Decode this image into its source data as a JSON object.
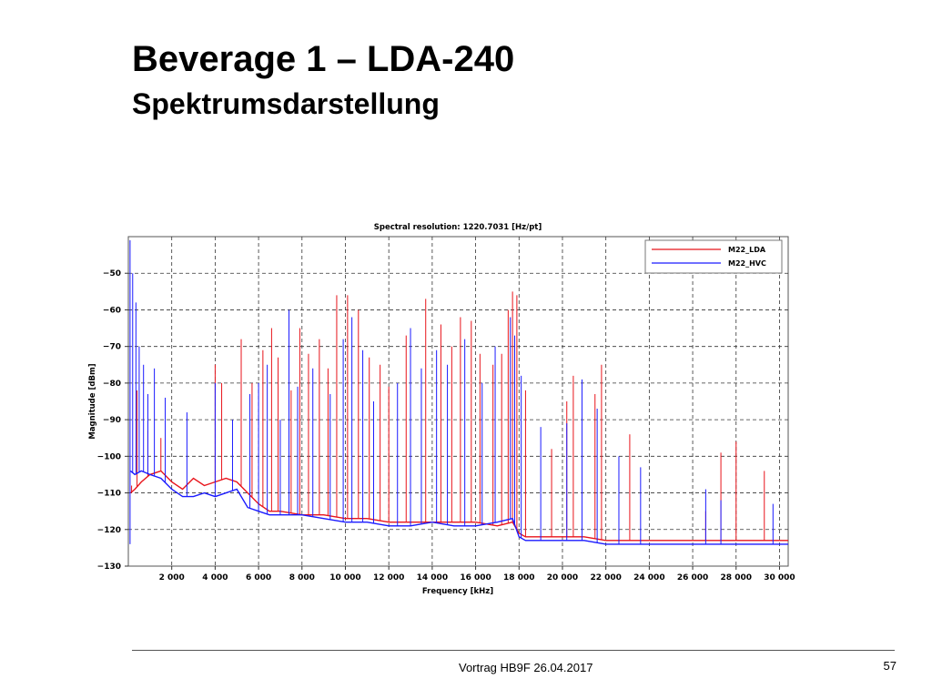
{
  "slide": {
    "title": "Beverage 1 – LDA-240",
    "subtitle": "Spektrumsdarstellung",
    "footer": "Vortrag HB9F 26.04.2017",
    "page_number": "57"
  },
  "chart_data": {
    "type": "line",
    "title": "Spectral resolution:  1220.7031   [Hz/pt]",
    "xlabel": "Frequency [kHz]",
    "ylabel": "Magnitude [dBm]",
    "xlim": [
      0,
      30400
    ],
    "ylim": [
      -130,
      -40
    ],
    "x_ticks": [
      2000,
      4000,
      6000,
      8000,
      10000,
      12000,
      14000,
      16000,
      18000,
      20000,
      22000,
      24000,
      26000,
      28000,
      30000
    ],
    "x_tick_labels": [
      "2 000",
      "4 000",
      "6 000",
      "8 000",
      "10 000",
      "12 000",
      "14 000",
      "16 000",
      "18 000",
      "20 000",
      "22 000",
      "24 000",
      "26 000",
      "28 000",
      "30 000"
    ],
    "y_ticks": [
      -130,
      -120,
      -110,
      -100,
      -90,
      -80,
      -70,
      -60,
      -50
    ],
    "y_tick_labels": [
      "−130",
      "−120",
      "−110",
      "−100",
      "−90",
      "−80",
      "−70",
      "−60",
      "−50"
    ],
    "grid": true,
    "legend_position": "top-right",
    "series": [
      {
        "name": "M22_LDA",
        "color": "#e8141b",
        "x": [
          100,
          300,
          600,
          1000,
          1500,
          2000,
          2500,
          3000,
          3500,
          4000,
          4500,
          5000,
          5500,
          6000,
          6500,
          7000,
          8000,
          9000,
          10000,
          11000,
          12000,
          13000,
          14000,
          15000,
          16000,
          17000,
          17700,
          18000,
          18300,
          19000,
          20000,
          21000,
          22000,
          23000,
          24000,
          25000,
          26000,
          27000,
          28000,
          29000,
          30000,
          30400
        ],
        "y": [
          -110,
          -109,
          -107,
          -105,
          -104,
          -107,
          -109,
          -106,
          -108,
          -107,
          -106,
          -107,
          -110,
          -113,
          -115,
          -115,
          -116,
          -116,
          -117,
          -117,
          -118,
          -118,
          -118,
          -118,
          -118,
          -119,
          -118,
          -121,
          -122,
          -122,
          -122,
          -122,
          -123,
          -123,
          -123,
          -123,
          -123,
          -123,
          -123,
          -123,
          -123,
          -123
        ],
        "peaks": [
          {
            "x": 150,
            "y": -108
          },
          {
            "x": 400,
            "y": -82
          },
          {
            "x": 900,
            "y": -93
          },
          {
            "x": 1500,
            "y": -95
          },
          {
            "x": 4000,
            "y": -75
          },
          {
            "x": 4300,
            "y": -80
          },
          {
            "x": 5200,
            "y": -68
          },
          {
            "x": 5700,
            "y": -80
          },
          {
            "x": 6200,
            "y": -71
          },
          {
            "x": 6600,
            "y": -65
          },
          {
            "x": 6900,
            "y": -73
          },
          {
            "x": 7500,
            "y": -82
          },
          {
            "x": 7900,
            "y": -65
          },
          {
            "x": 8300,
            "y": -72
          },
          {
            "x": 8800,
            "y": -68
          },
          {
            "x": 9200,
            "y": -76
          },
          {
            "x": 9600,
            "y": -56
          },
          {
            "x": 10100,
            "y": -56
          },
          {
            "x": 10600,
            "y": -60
          },
          {
            "x": 11100,
            "y": -73
          },
          {
            "x": 11600,
            "y": -75
          },
          {
            "x": 12000,
            "y": -81
          },
          {
            "x": 12800,
            "y": -67
          },
          {
            "x": 13700,
            "y": -57
          },
          {
            "x": 14400,
            "y": -64
          },
          {
            "x": 14900,
            "y": -70
          },
          {
            "x": 15300,
            "y": -62
          },
          {
            "x": 15800,
            "y": -63
          },
          {
            "x": 16200,
            "y": -72
          },
          {
            "x": 16800,
            "y": -75
          },
          {
            "x": 17200,
            "y": -72
          },
          {
            "x": 17500,
            "y": -60
          },
          {
            "x": 17700,
            "y": -55
          },
          {
            "x": 17900,
            "y": -56
          },
          {
            "x": 18300,
            "y": -82
          },
          {
            "x": 19500,
            "y": -98
          },
          {
            "x": 20200,
            "y": -85
          },
          {
            "x": 20500,
            "y": -78
          },
          {
            "x": 21500,
            "y": -83
          },
          {
            "x": 21800,
            "y": -75
          },
          {
            "x": 23100,
            "y": -94
          },
          {
            "x": 26600,
            "y": -115
          },
          {
            "x": 27300,
            "y": -99
          },
          {
            "x": 28000,
            "y": -96
          },
          {
            "x": 29300,
            "y": -104
          }
        ]
      },
      {
        "name": "M22_HVC",
        "color": "#1a1aff",
        "x": [
          100,
          300,
          600,
          1000,
          1500,
          2000,
          2500,
          3000,
          3500,
          4000,
          4500,
          5000,
          5500,
          6000,
          6500,
          7000,
          8000,
          9000,
          10000,
          11000,
          12000,
          13000,
          14000,
          15000,
          16000,
          17000,
          17700,
          18000,
          18300,
          19000,
          20000,
          21000,
          22000,
          23000,
          24000,
          25000,
          26000,
          27000,
          28000,
          29000,
          30000,
          30400
        ],
        "y": [
          -104,
          -105,
          -104,
          -105,
          -106,
          -109,
          -111,
          -111,
          -110,
          -111,
          -110,
          -109,
          -114,
          -115,
          -116,
          -116,
          -116,
          -117,
          -118,
          -118,
          -119,
          -119,
          -118,
          -119,
          -119,
          -118,
          -117,
          -122,
          -123,
          -123,
          -123,
          -123,
          -124,
          -124,
          -124,
          -124,
          -124,
          -124,
          -124,
          -124,
          -124,
          -124
        ],
        "peaks": [
          {
            "x": 80,
            "y": -41
          },
          {
            "x": 200,
            "y": -50
          },
          {
            "x": 350,
            "y": -58
          },
          {
            "x": 500,
            "y": -70
          },
          {
            "x": 700,
            "y": -75
          },
          {
            "x": 900,
            "y": -83
          },
          {
            "x": 1200,
            "y": -76
          },
          {
            "x": 1700,
            "y": -84
          },
          {
            "x": 2700,
            "y": -88
          },
          {
            "x": 4000,
            "y": -80
          },
          {
            "x": 4800,
            "y": -90
          },
          {
            "x": 5600,
            "y": -83
          },
          {
            "x": 6000,
            "y": -80
          },
          {
            "x": 6400,
            "y": -75
          },
          {
            "x": 7000,
            "y": -90
          },
          {
            "x": 7400,
            "y": -60
          },
          {
            "x": 7800,
            "y": -81
          },
          {
            "x": 8500,
            "y": -76
          },
          {
            "x": 9300,
            "y": -83
          },
          {
            "x": 9900,
            "y": -68
          },
          {
            "x": 10300,
            "y": -62
          },
          {
            "x": 10800,
            "y": -71
          },
          {
            "x": 11300,
            "y": -85
          },
          {
            "x": 12400,
            "y": -80
          },
          {
            "x": 13000,
            "y": -65
          },
          {
            "x": 13500,
            "y": -76
          },
          {
            "x": 14200,
            "y": -71
          },
          {
            "x": 14700,
            "y": -75
          },
          {
            "x": 15500,
            "y": -68
          },
          {
            "x": 16300,
            "y": -80
          },
          {
            "x": 16900,
            "y": -70
          },
          {
            "x": 17600,
            "y": -62
          },
          {
            "x": 17800,
            "y": -67
          },
          {
            "x": 18100,
            "y": -78
          },
          {
            "x": 19000,
            "y": -92
          },
          {
            "x": 20200,
            "y": -91
          },
          {
            "x": 20900,
            "y": -79
          },
          {
            "x": 21600,
            "y": -87
          },
          {
            "x": 22600,
            "y": -100
          },
          {
            "x": 23600,
            "y": -103
          },
          {
            "x": 26600,
            "y": -109
          },
          {
            "x": 27300,
            "y": -112
          },
          {
            "x": 29700,
            "y": -113
          }
        ]
      }
    ]
  }
}
